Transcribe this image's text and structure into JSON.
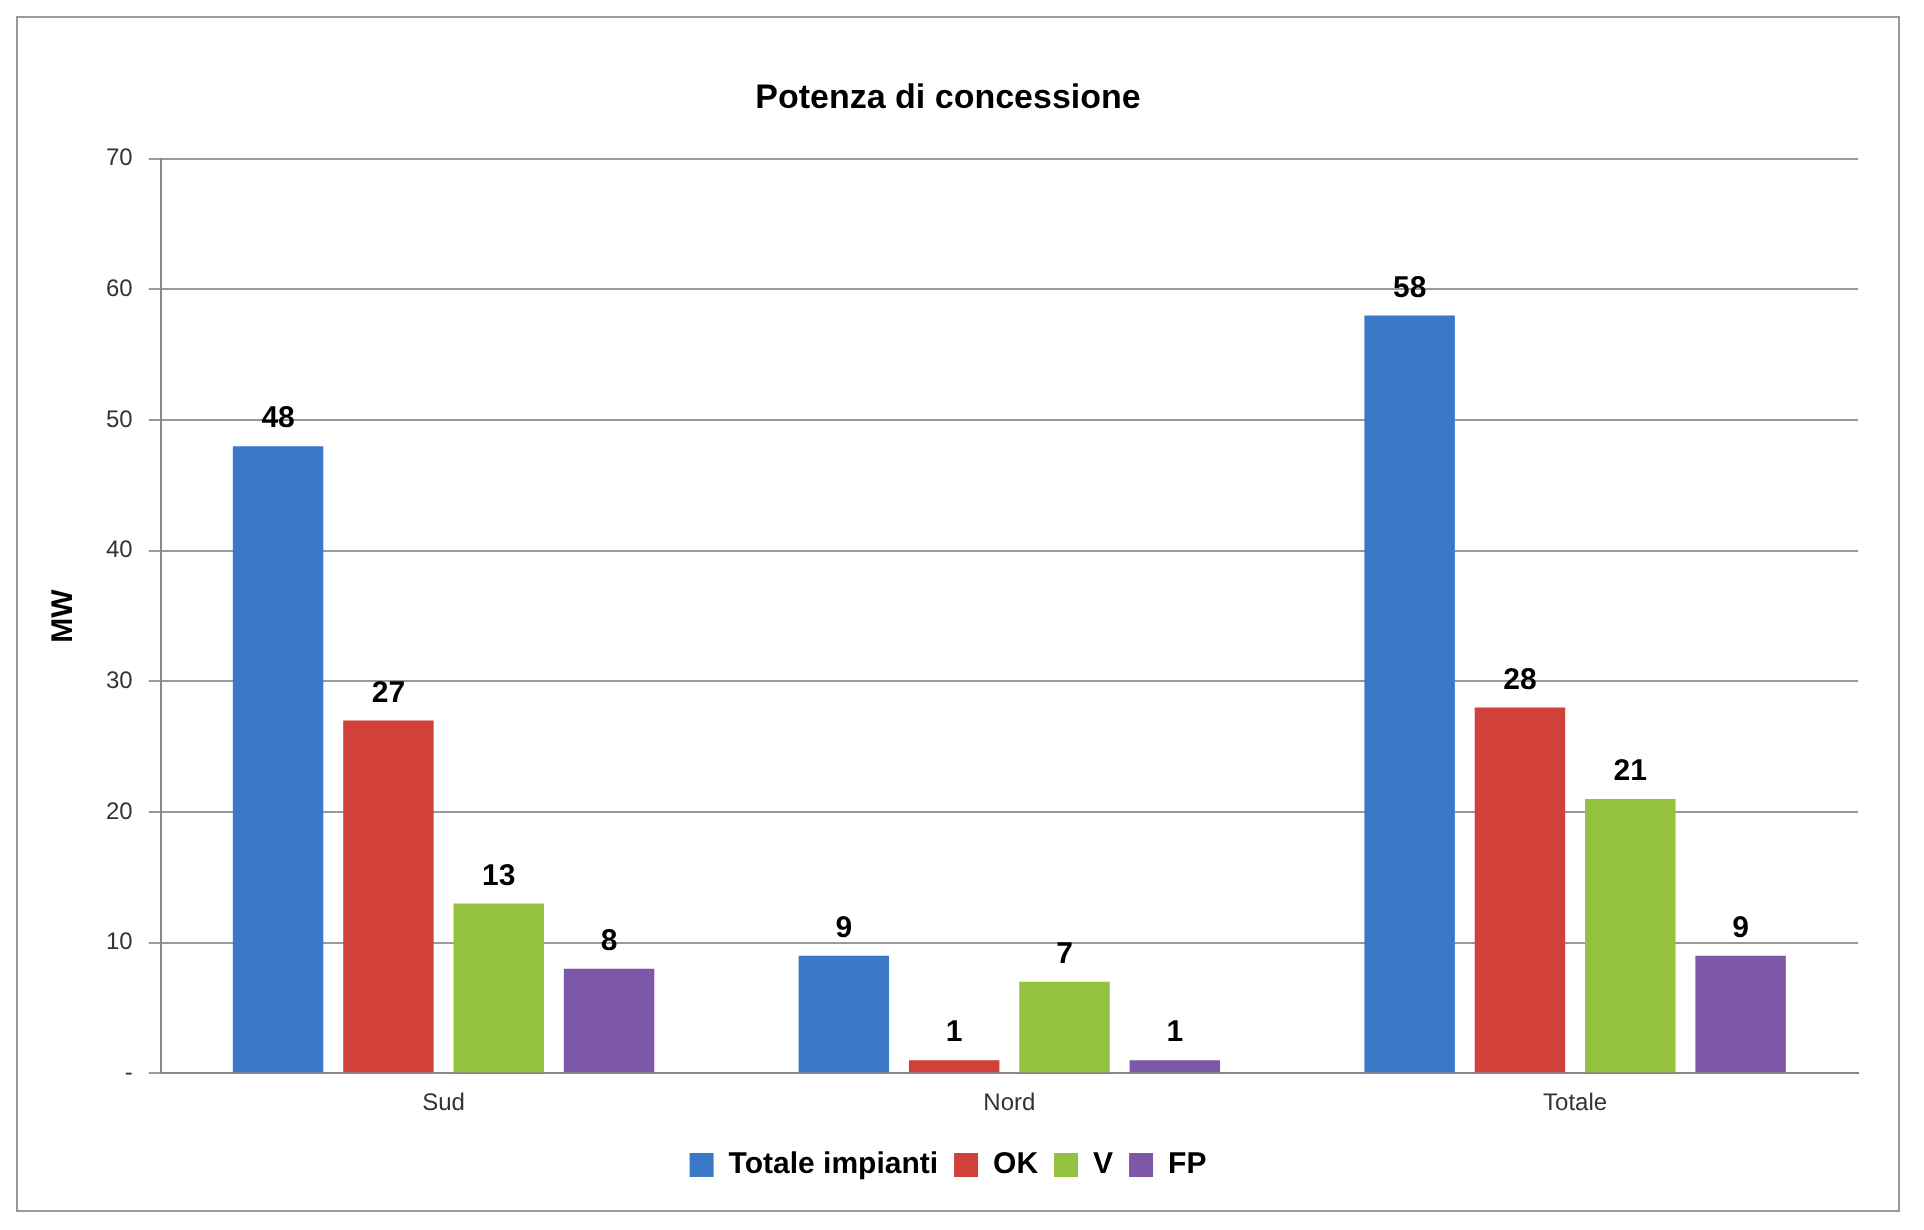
{
  "chart_data": {
    "type": "bar",
    "title": "Potenza di concessione",
    "ylabel": "MW",
    "categories": [
      "Sud",
      "Nord",
      "Totale"
    ],
    "series": [
      {
        "name": "Totale impianti",
        "color": "#3b78c8",
        "values": [
          48,
          9,
          58
        ]
      },
      {
        "name": "OK",
        "color": "#d2403a",
        "values": [
          27,
          1,
          28
        ]
      },
      {
        "name": "V",
        "color": "#94c23e",
        "values": [
          13,
          7,
          21
        ]
      },
      {
        "name": "FP",
        "color": "#7e58a8",
        "values": [
          8,
          1,
          9
        ]
      }
    ],
    "ylim": [
      0,
      70
    ],
    "yticks": [
      {
        "value": 0,
        "label": "-"
      },
      10,
      20,
      30,
      40,
      50,
      60,
      70
    ],
    "grid": "y",
    "legend": "bottom",
    "data_labels": true
  }
}
